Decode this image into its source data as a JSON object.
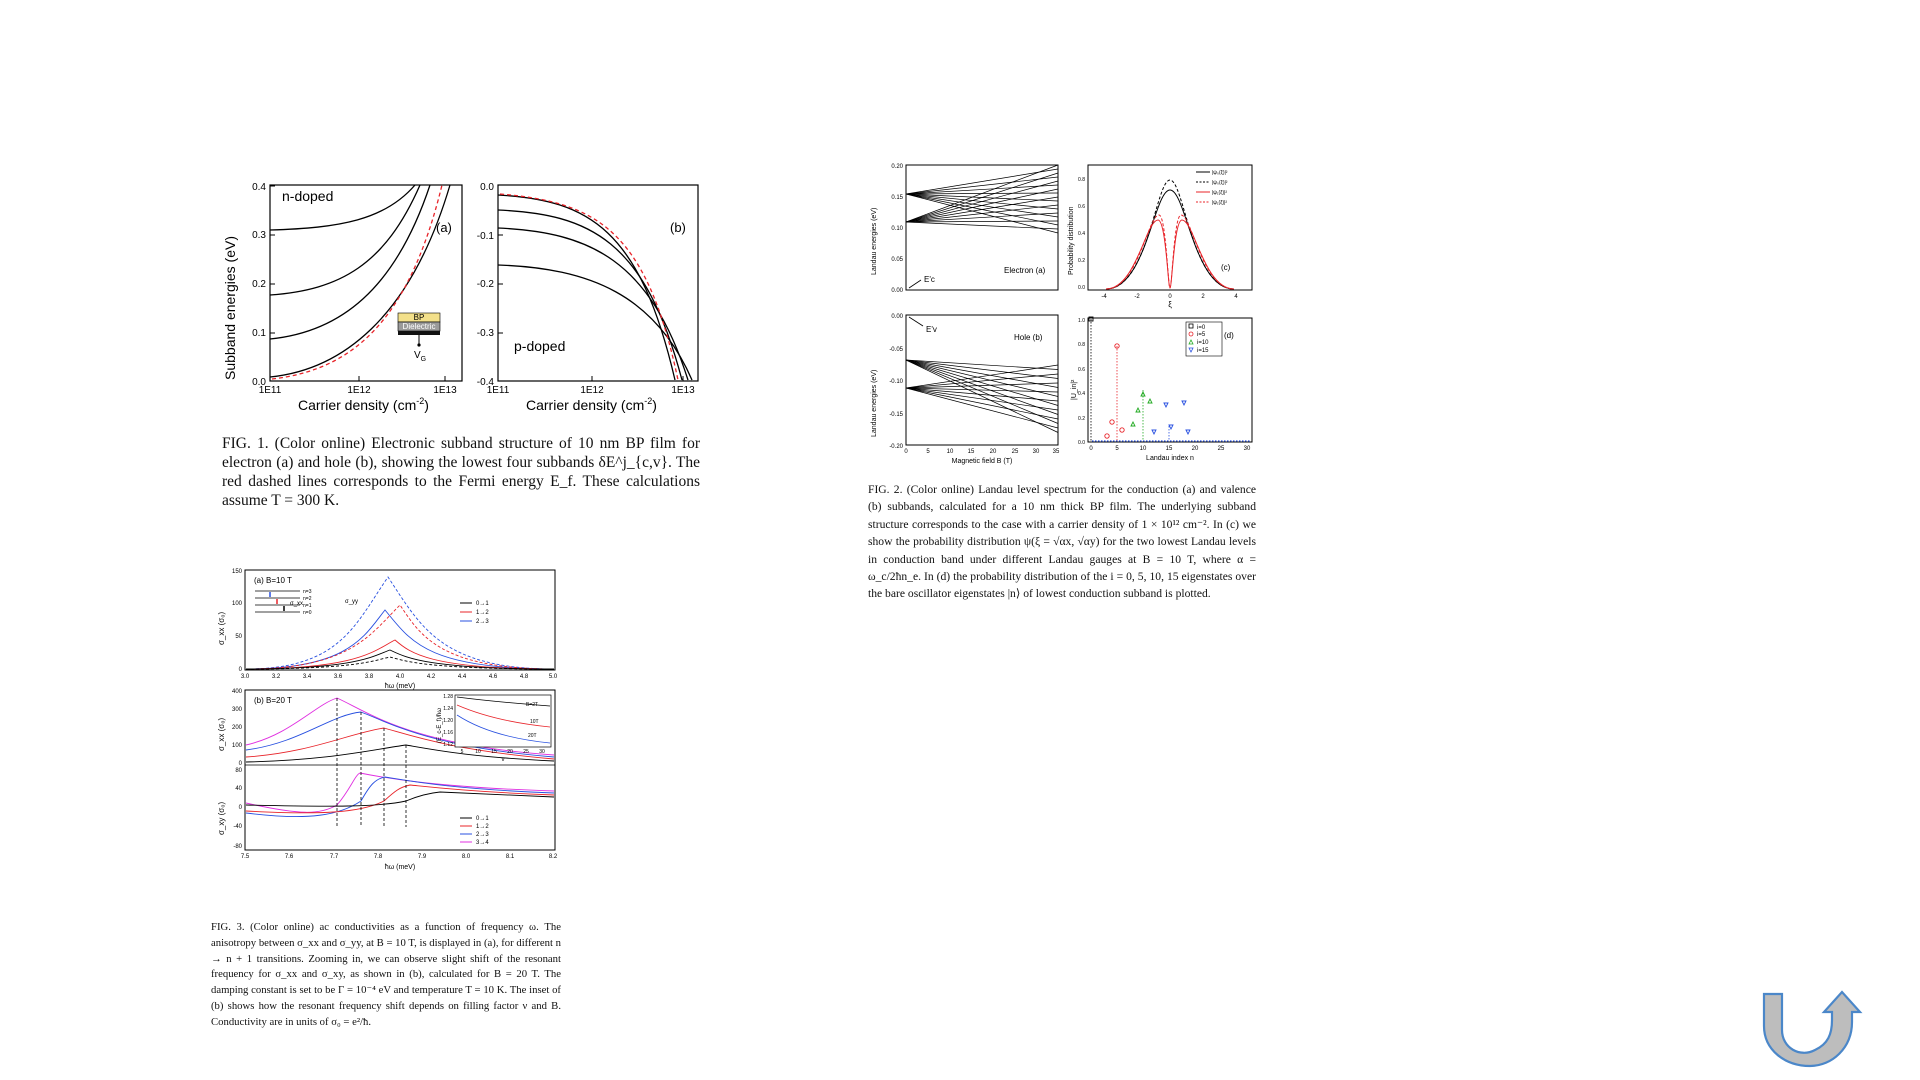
{
  "fig1": {
    "panel_a": {
      "label": "(a)",
      "tag": "n-doped",
      "ylabel": "Subband energies (eV)",
      "xlabel": "Carrier density (cm",
      "xlabel_sup": "-2",
      "xlabel_end": ")",
      "yticks": [
        "0.4",
        "0.3",
        "0.2",
        "0.1",
        "0.0"
      ],
      "xticks": [
        "1E11",
        "1E12",
        "1E13"
      ],
      "inset": {
        "top": "BP",
        "middle": "Dielectric",
        "gate": "V",
        "gate_sub": "G"
      }
    },
    "panel_b": {
      "label": "(b)",
      "tag": "p-doped",
      "xlabel": "Carrier density (cm",
      "xlabel_sup": "-2",
      "xlabel_end": ")",
      "yticks": [
        "0.0",
        "-0.1",
        "-0.2",
        "-0.3",
        "-0.4"
      ],
      "xticks": [
        "1E11",
        "1E12",
        "1E13"
      ]
    },
    "caption": "FIG. 1. (Color online) Electronic subband structure of 10 nm BP film for electron (a) and hole (b), showing the lowest four subbands δE^j_{c,v}. The red dashed lines corresponds to the Fermi energy E_f. These calculations assume T = 300 K."
  },
  "fig2": {
    "panel_a": {
      "label": "Electron (a)",
      "ylabel": "Landau energies (eV)",
      "yticks": [
        "0.20",
        "0.15",
        "0.10",
        "0.05",
        "0.00"
      ],
      "marker": "E'c"
    },
    "panel_b": {
      "label": "Hole (b)",
      "ylabel": "Landau energies (eV)",
      "yticks": [
        "0.00",
        "-0.05",
        "-0.10",
        "-0.15",
        "-0.20"
      ],
      "xticks": [
        "0",
        "5",
        "10",
        "15",
        "20",
        "25",
        "30",
        "35"
      ],
      "xlabel": "Magnetic field B (T)",
      "marker": "E'v"
    },
    "panel_c": {
      "label": "(c)",
      "ylabel": "Probability distribution",
      "xlabel": "ξ",
      "xticks": [
        "-4",
        "-2",
        "0",
        "2",
        "4"
      ],
      "yticks": [
        "0.8",
        "0.6",
        "0.4",
        "0.2",
        "0.0"
      ],
      "legend": [
        "|ψ₀(ξ)|²",
        "|ψ₀(ξ)|²",
        "|ψ₁(ξ)|²",
        "|ψ₁(ξ)|²"
      ]
    },
    "panel_d": {
      "label": "(d)",
      "ylabel": "|U_in|²",
      "xlabel": "Landau index n",
      "xticks": [
        "0",
        "5",
        "10",
        "15",
        "20",
        "25",
        "30"
      ],
      "yticks": [
        "1.0",
        "0.8",
        "0.6",
        "0.4",
        "0.2",
        "0.0"
      ],
      "legend": [
        "i=0",
        "i=5",
        "i=10",
        "i=15"
      ]
    },
    "caption": "FIG. 2. (Color online) Landau level spectrum for the conduction (a) and valence (b) subbands, calculated for a 10 nm thick BP film. The underlying subband structure corresponds to the case with a carrier density of 1 × 10¹² cm⁻². In (c) we show the probability distribution ψ(ξ = √αx, √αy) for the two lowest Landau levels in conduction band under different Landau gauges at B = 10 T, where α = ω_c/2ħn_e. In (d) the probability distribution of the i = 0, 5, 10, 15 eigenstates over the bare oscillator eigenstates |n⟩ of lowest conduction subband is plotted."
  },
  "fig3": {
    "panel_a": {
      "label": "(a) B=10 T",
      "ylabel": "σ_xx (σ₀)",
      "xlabel": "ħω (meV)",
      "yticks": [
        "150",
        "100",
        "50",
        "0"
      ],
      "xticks": [
        "3.0",
        "3.2",
        "3.4",
        "3.6",
        "3.8",
        "4.0",
        "4.2",
        "4.4",
        "4.6",
        "4.8",
        "5.0"
      ],
      "levels": [
        "n=3",
        "n=2",
        "n=1",
        "n=0"
      ],
      "legend": [
        "0→1",
        "1→2",
        "2→3"
      ],
      "annotations": [
        "σ_xx",
        "σ_yy"
      ]
    },
    "panel_b": {
      "label": "(b) B=20 T",
      "ylabel_top": "σ_xx (σ₀)",
      "ylabel_bottom": "σ_xy (σ₀)",
      "xlabel": "ħω (meV)",
      "yticks_top": [
        "400",
        "300",
        "200",
        "100",
        "0"
      ],
      "yticks_bottom": [
        "80",
        "40",
        "0",
        "-40",
        "-80"
      ],
      "xticks": [
        "7.5",
        "7.6",
        "7.7",
        "7.8",
        "7.9",
        "8.0",
        "8.1",
        "8.2"
      ],
      "legend": [
        "0→1",
        "1→2",
        "2→3",
        "3→4"
      ],
      "inset": {
        "ylabel": "(E_c-E_f)/ħω",
        "xlabel": "ν",
        "yticks": [
          "1.28",
          "1.24",
          "1.20",
          "1.16",
          "1.12"
        ],
        "xticks": [
          "5",
          "10",
          "15",
          "20",
          "25",
          "30"
        ],
        "curves": [
          "B=2T",
          "10T",
          "20T"
        ]
      }
    },
    "caption": "FIG. 3. (Color online) ac conductivities as a function of frequency ω. The anisotropy between σ_xx and σ_yy, at B = 10 T, is displayed in (a), for different n → n + 1 transitions. Zooming in, we can observe slight shift of the resonant frequency for σ_xx and σ_xy, as shown in (b), calculated for B = 20 T. The damping constant is set to be Γ = 10⁻⁴ eV and temperature T = 10 K. The inset of (b) shows how the resonant frequency shift depends on filling factor ν and B. Conductivity are in units of σ₀ = e²/ħ."
  },
  "nav": {
    "icon": "curved-arrow-icon"
  },
  "colors": {
    "red": "#e8242a",
    "blue": "#2850e0",
    "green": "#22aa22",
    "magenta": "#e030e0",
    "black": "#000000",
    "nav": "#4b87c9",
    "nav_fill": "#bdbdbd",
    "inset_bp": "#f3e08a",
    "inset_diel": "#9a9a9a"
  }
}
